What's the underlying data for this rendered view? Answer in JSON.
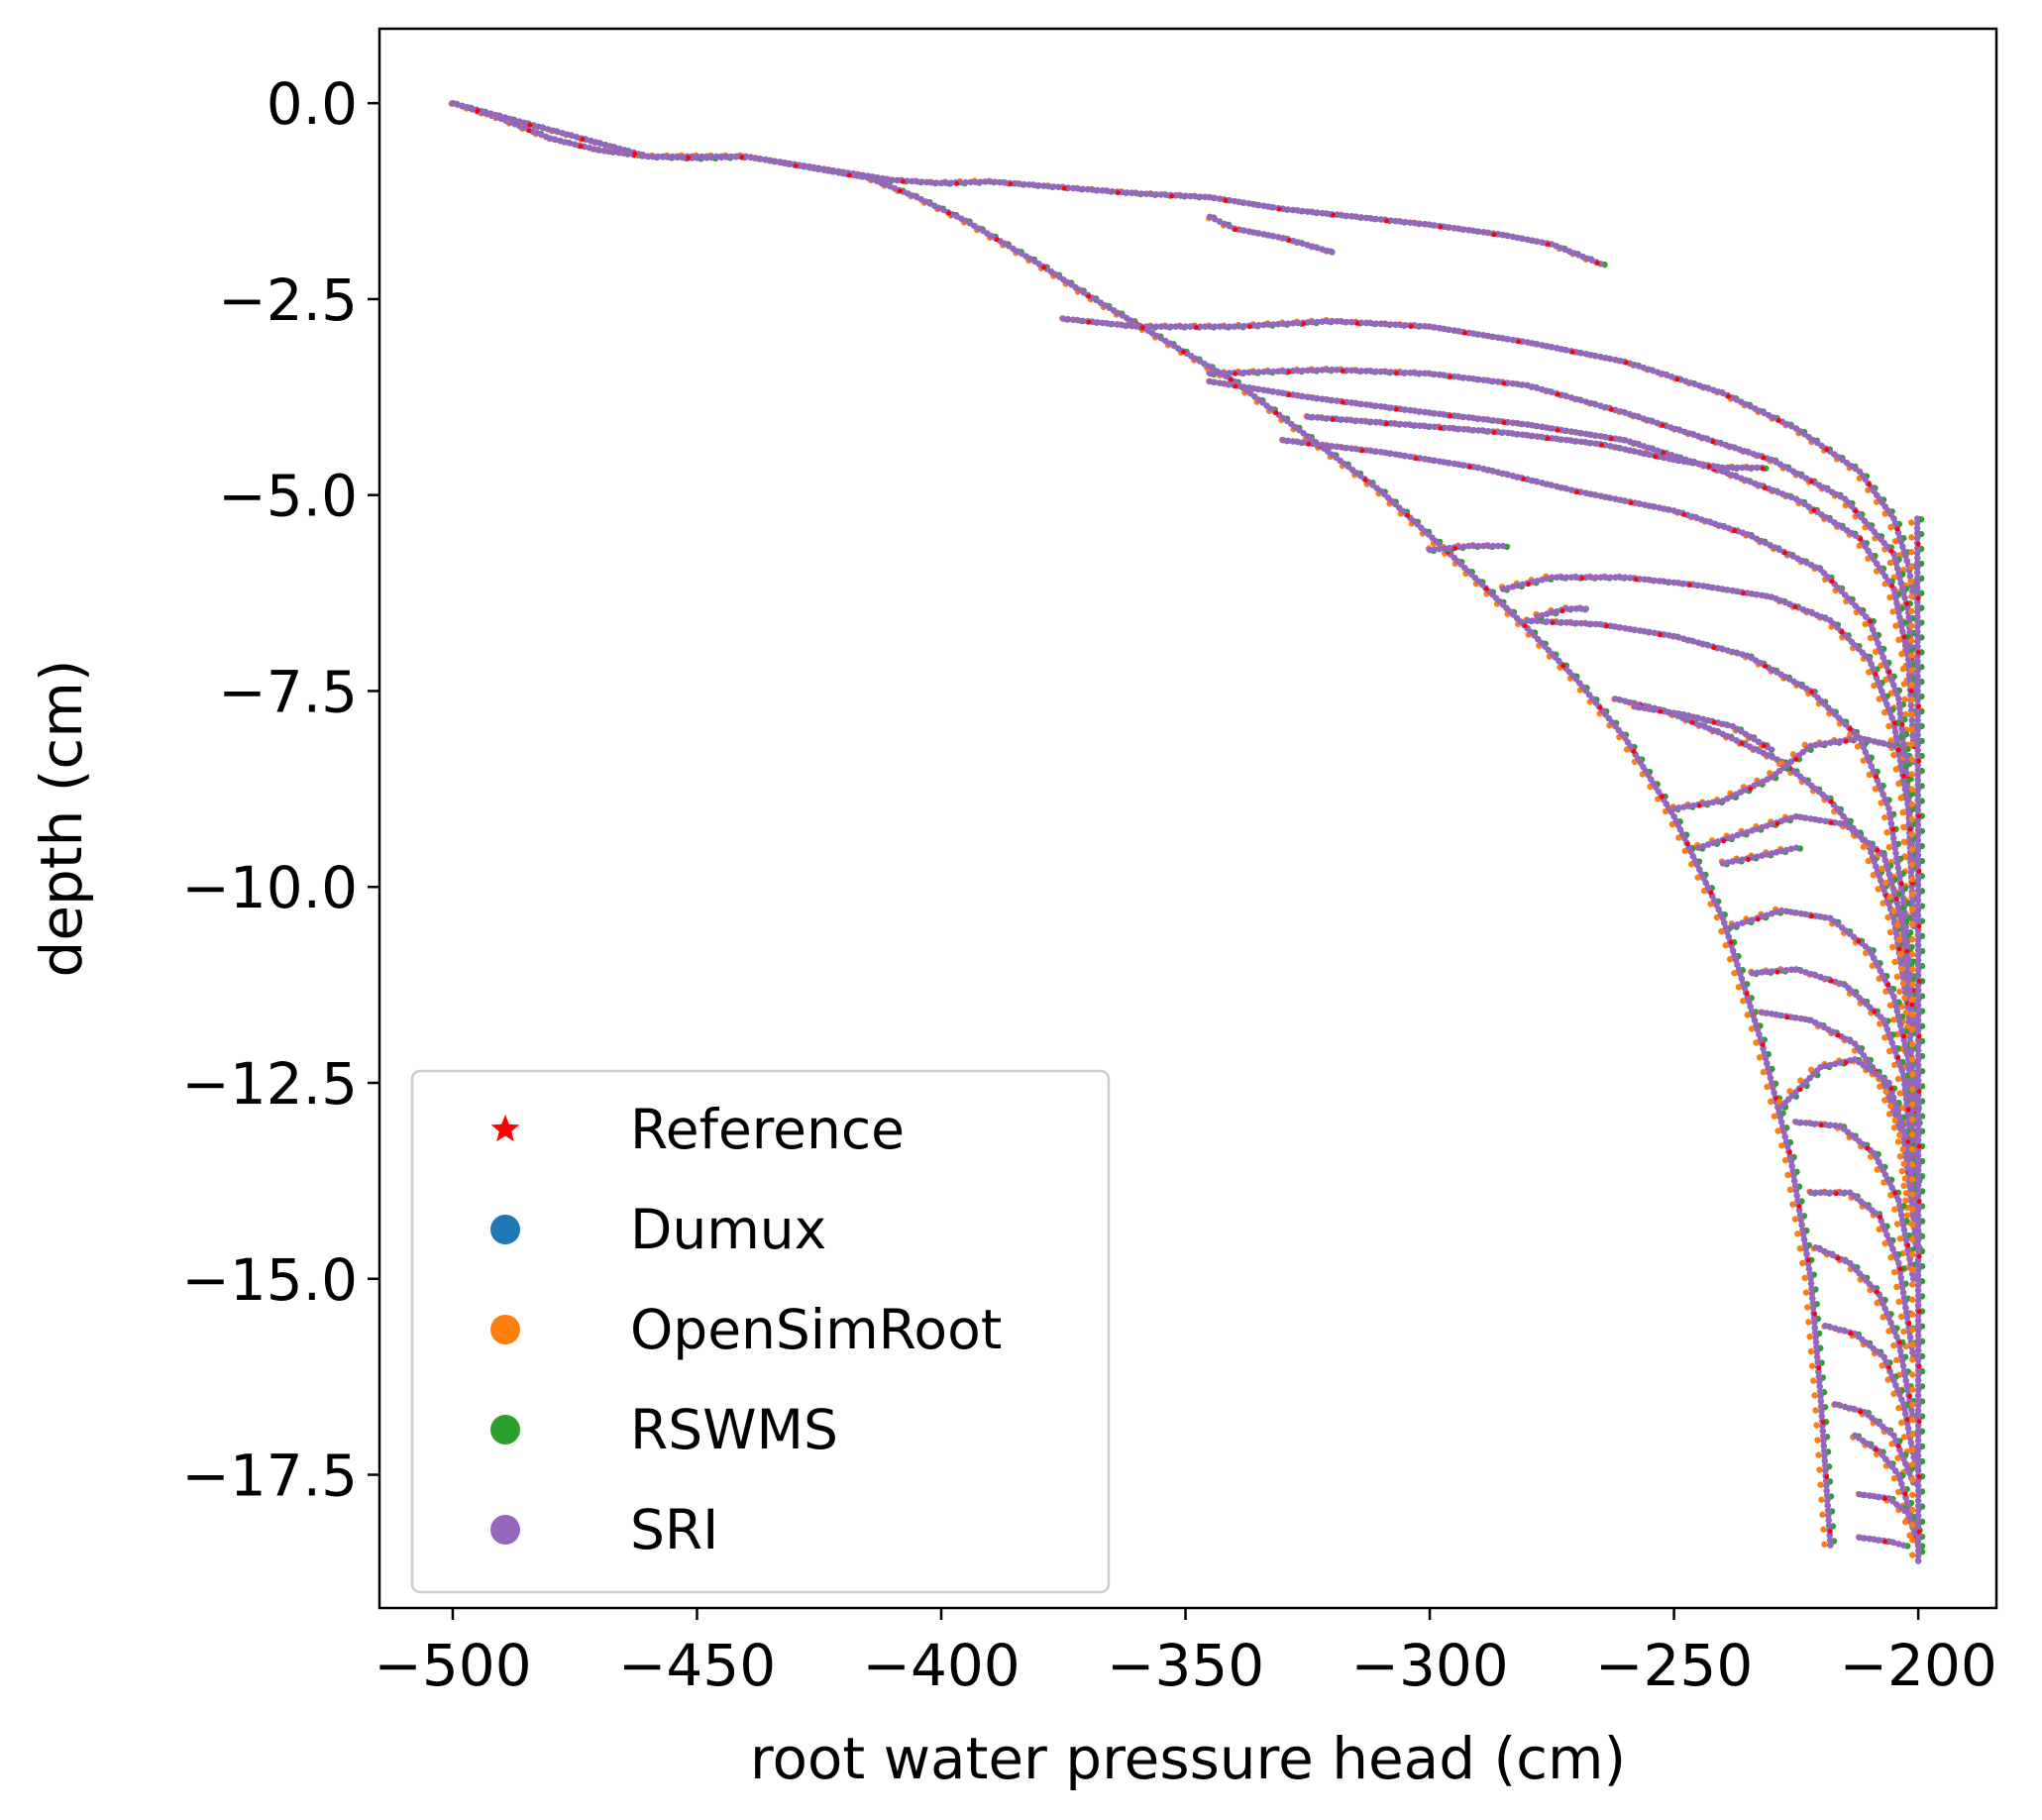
{
  "chart_data": {
    "type": "scatter",
    "xlabel": "root water pressure head (cm)",
    "ylabel": "depth (cm)",
    "xlim": [
      -515,
      -184
    ],
    "ylim": [
      -19.2,
      0.95
    ],
    "xticks": [
      -500,
      -450,
      -400,
      -350,
      -300,
      -250,
      -200
    ],
    "xtick_labels": [
      "−500",
      "−450",
      "−400",
      "−350",
      "−300",
      "−250",
      "−200"
    ],
    "yticks": [
      0.0,
      -2.5,
      -5.0,
      -7.5,
      -10.0,
      -12.5,
      -15.0,
      -17.5
    ],
    "ytick_labels": [
      "0.0",
      "−2.5",
      "−5.0",
      "−7.5",
      "−10.0",
      "−12.5",
      "−15.0",
      "−17.5"
    ],
    "legend_position": "lower-left",
    "series": [
      {
        "name": "Reference",
        "marker": "star",
        "color": "#ff0000"
      },
      {
        "name": "Dumux",
        "marker": "circle",
        "color": "#1f77b4"
      },
      {
        "name": "OpenSimRoot",
        "marker": "circle",
        "color": "#ff7f0e"
      },
      {
        "name": "RSWMS",
        "marker": "circle",
        "color": "#2ca02c"
      },
      {
        "name": "SRI",
        "marker": "circle",
        "color": "#9467bd"
      }
    ],
    "curves": [
      {
        "points": [
          [
            -500,
            0.0
          ],
          [
            -490,
            -0.2
          ],
          [
            -480,
            -0.45
          ],
          [
            -470,
            -0.6
          ],
          [
            -460,
            -0.68
          ],
          [
            -450,
            -0.7
          ],
          [
            -440,
            -0.68
          ],
          [
            -430,
            -0.78
          ],
          [
            -420,
            -0.88
          ],
          [
            -410,
            -0.98
          ],
          [
            -400,
            -1.02
          ],
          [
            -390,
            -1.0
          ],
          [
            -380,
            -1.05
          ],
          [
            -370,
            -1.1
          ],
          [
            -360,
            -1.15
          ],
          [
            -345,
            -1.2
          ],
          [
            -330,
            -1.35
          ],
          [
            -315,
            -1.45
          ],
          [
            -300,
            -1.55
          ],
          [
            -285,
            -1.68
          ],
          [
            -275,
            -1.8
          ],
          [
            -265,
            -2.05
          ]
        ]
      },
      {
        "points": [
          [
            -345,
            -1.45
          ],
          [
            -340,
            -1.6
          ],
          [
            -330,
            -1.72
          ],
          [
            -320,
            -1.9
          ]
        ]
      },
      {
        "points": [
          [
            -500,
            0.0
          ],
          [
            -460,
            -0.68
          ],
          [
            -440,
            -0.68
          ],
          [
            -415,
            -0.95
          ],
          [
            -405,
            -1.2
          ],
          [
            -395,
            -1.5
          ],
          [
            -380,
            -2.05
          ],
          [
            -370,
            -2.45
          ],
          [
            -355,
            -3.0
          ],
          [
            -340,
            -3.55
          ],
          [
            -325,
            -4.25
          ],
          [
            -310,
            -4.95
          ],
          [
            -295,
            -5.8
          ],
          [
            -280,
            -6.7
          ],
          [
            -270,
            -7.35
          ],
          [
            -260,
            -8.1
          ],
          [
            -250,
            -9.1
          ],
          [
            -240,
            -10.4
          ],
          [
            -232,
            -12.0
          ],
          [
            -226,
            -13.5
          ],
          [
            -222,
            -15.0
          ],
          [
            -220,
            -16.5
          ],
          [
            -218,
            -18.4
          ]
        ]
      },
      {
        "points": [
          [
            -375,
            -2.75
          ],
          [
            -360,
            -2.85
          ],
          [
            -340,
            -2.85
          ],
          [
            -320,
            -2.78
          ],
          [
            -300,
            -2.85
          ],
          [
            -280,
            -3.05
          ],
          [
            -260,
            -3.3
          ],
          [
            -240,
            -3.7
          ],
          [
            -225,
            -4.15
          ],
          [
            -212,
            -4.7
          ],
          [
            -205,
            -5.3
          ],
          [
            -202,
            -5.9
          ],
          [
            -201,
            -6.3
          ]
        ]
      },
      {
        "points": [
          [
            -345,
            -3.45
          ],
          [
            -320,
            -3.4
          ],
          [
            -300,
            -3.45
          ],
          [
            -280,
            -3.6
          ],
          [
            -260,
            -3.95
          ],
          [
            -245,
            -4.25
          ],
          [
            -230,
            -4.55
          ],
          [
            -215,
            -5.05
          ],
          [
            -205,
            -5.75
          ],
          [
            -202,
            -6.5
          ],
          [
            -201,
            -7.5
          ]
        ]
      },
      {
        "points": [
          [
            -345,
            -3.55
          ],
          [
            -325,
            -3.75
          ],
          [
            -300,
            -3.95
          ],
          [
            -280,
            -4.1
          ],
          [
            -260,
            -4.3
          ],
          [
            -240,
            -4.7
          ],
          [
            -225,
            -5.05
          ],
          [
            -212,
            -5.55
          ],
          [
            -205,
            -6.2
          ],
          [
            -202,
            -7.1
          ],
          [
            -201,
            -8.2
          ]
        ]
      },
      {
        "points": [
          [
            -330,
            -4.3
          ],
          [
            -310,
            -4.45
          ],
          [
            -290,
            -4.65
          ],
          [
            -270,
            -4.95
          ],
          [
            -250,
            -5.2
          ],
          [
            -235,
            -5.5
          ],
          [
            -220,
            -5.95
          ],
          [
            -210,
            -6.6
          ],
          [
            -204,
            -7.6
          ],
          [
            -202,
            -8.8
          ],
          [
            -201,
            -9.7
          ]
        ]
      },
      {
        "points": [
          [
            -325,
            -4.0
          ],
          [
            -305,
            -4.1
          ],
          [
            -285,
            -4.2
          ],
          [
            -265,
            -4.35
          ],
          [
            -250,
            -4.55
          ],
          [
            -240,
            -4.65
          ],
          [
            -232,
            -4.65
          ]
        ]
      },
      {
        "points": [
          [
            -300,
            -5.7
          ],
          [
            -292,
            -5.65
          ],
          [
            -285,
            -5.65
          ]
        ]
      },
      {
        "points": [
          [
            -285,
            -6.2
          ],
          [
            -275,
            -6.05
          ],
          [
            -260,
            -6.05
          ],
          [
            -245,
            -6.15
          ],
          [
            -230,
            -6.3
          ],
          [
            -218,
            -6.6
          ],
          [
            -210,
            -7.1
          ],
          [
            -205,
            -7.9
          ],
          [
            -202,
            -9.0
          ],
          [
            -201,
            -10.5
          ]
        ]
      },
      {
        "points": [
          [
            -280,
            -6.6
          ],
          [
            -265,
            -6.65
          ],
          [
            -250,
            -6.8
          ],
          [
            -235,
            -7.05
          ],
          [
            -222,
            -7.5
          ],
          [
            -212,
            -8.1
          ],
          [
            -206,
            -9.0
          ],
          [
            -203,
            -10.2
          ],
          [
            -201,
            -11.5
          ]
        ]
      },
      {
        "points": [
          [
            -278,
            -6.55
          ],
          [
            -272,
            -6.45
          ],
          [
            -268,
            -6.45
          ]
        ]
      },
      {
        "points": [
          [
            -262,
            -7.6
          ],
          [
            -252,
            -7.75
          ],
          [
            -240,
            -8.05
          ],
          [
            -228,
            -8.4
          ],
          [
            -218,
            -8.9
          ],
          [
            -210,
            -9.5
          ],
          [
            -205,
            -10.4
          ],
          [
            -202,
            -11.6
          ],
          [
            -200.5,
            -13.0
          ]
        ]
      },
      {
        "points": [
          [
            -258,
            -7.7
          ],
          [
            -248,
            -7.8
          ],
          [
            -238,
            -7.95
          ],
          [
            -230,
            -8.25
          ]
        ]
      },
      {
        "points": [
          [
            -250,
            -9.0
          ],
          [
            -240,
            -8.9
          ],
          [
            -230,
            -8.6
          ],
          [
            -222,
            -8.2
          ],
          [
            -212,
            -8.1
          ],
          [
            -205,
            -8.2
          ],
          [
            -201,
            -8.4
          ]
        ]
      },
      {
        "points": [
          [
            -245,
            -9.5
          ],
          [
            -235,
            -9.3
          ],
          [
            -225,
            -9.1
          ],
          [
            -215,
            -9.2
          ],
          [
            -207,
            -9.6
          ],
          [
            -203,
            -10.5
          ],
          [
            -201,
            -11.8
          ]
        ]
      },
      {
        "points": [
          [
            -240,
            -9.7
          ],
          [
            -232,
            -9.6
          ],
          [
            -225,
            -9.5
          ]
        ]
      },
      {
        "points": [
          [
            -238,
            -10.5
          ],
          [
            -228,
            -10.3
          ],
          [
            -218,
            -10.4
          ],
          [
            -210,
            -10.8
          ],
          [
            -205,
            -11.4
          ],
          [
            -202,
            -12.2
          ],
          [
            -200.5,
            -13.8
          ]
        ]
      },
      {
        "points": [
          [
            -234,
            -11.1
          ],
          [
            -225,
            -11.05
          ],
          [
            -215,
            -11.25
          ],
          [
            -207,
            -11.7
          ],
          [
            -203,
            -12.4
          ],
          [
            -201,
            -13.5
          ]
        ]
      },
      {
        "points": [
          [
            -232,
            -11.6
          ],
          [
            -222,
            -11.7
          ],
          [
            -213,
            -12.0
          ],
          [
            -207,
            -12.5
          ],
          [
            -203,
            -13.2
          ],
          [
            -201,
            -14.2
          ]
        ]
      },
      {
        "points": [
          [
            -228,
            -12.8
          ],
          [
            -220,
            -12.3
          ],
          [
            -213,
            -12.2
          ],
          [
            -206,
            -12.5
          ],
          [
            -202,
            -13.3
          ],
          [
            -200.5,
            -14.6
          ]
        ]
      },
      {
        "points": [
          [
            -225,
            -13.0
          ],
          [
            -216,
            -13.05
          ],
          [
            -209,
            -13.4
          ],
          [
            -204,
            -14.0
          ],
          [
            -201,
            -15.0
          ]
        ]
      },
      {
        "points": [
          [
            -222,
            -13.9
          ],
          [
            -214,
            -13.9
          ],
          [
            -208,
            -14.2
          ],
          [
            -204,
            -14.8
          ],
          [
            -201,
            -16.0
          ]
        ]
      },
      {
        "points": [
          [
            -221,
            -14.6
          ],
          [
            -214,
            -14.8
          ],
          [
            -208,
            -15.2
          ],
          [
            -204,
            -15.8
          ],
          [
            -201,
            -16.8
          ]
        ]
      },
      {
        "points": [
          [
            -219,
            -15.6
          ],
          [
            -213,
            -15.7
          ],
          [
            -207,
            -16.0
          ],
          [
            -203,
            -16.6
          ],
          [
            -200.5,
            -17.4
          ]
        ]
      },
      {
        "points": [
          [
            -217,
            -16.6
          ],
          [
            -211,
            -16.7
          ],
          [
            -205,
            -17.0
          ],
          [
            -201,
            -17.6
          ]
        ]
      },
      {
        "points": [
          [
            -213,
            -17.0
          ],
          [
            -208,
            -17.2
          ],
          [
            -204,
            -17.5
          ],
          [
            -200.5,
            -18.2
          ]
        ]
      },
      {
        "points": [
          [
            -212,
            -17.75
          ],
          [
            -206,
            -17.8
          ],
          [
            -202,
            -18.0
          ],
          [
            -200,
            -18.4
          ]
        ]
      },
      {
        "points": [
          [
            -212,
            -18.3
          ],
          [
            -206,
            -18.35
          ],
          [
            -203,
            -18.4
          ]
        ]
      },
      {
        "points": [
          [
            -200.2,
            -5.3
          ],
          [
            -200.1,
            -8.0
          ],
          [
            -200,
            -11.0
          ],
          [
            -200,
            -14.0
          ],
          [
            -200,
            -17.0
          ],
          [
            -200,
            -18.6
          ]
        ]
      }
    ]
  }
}
